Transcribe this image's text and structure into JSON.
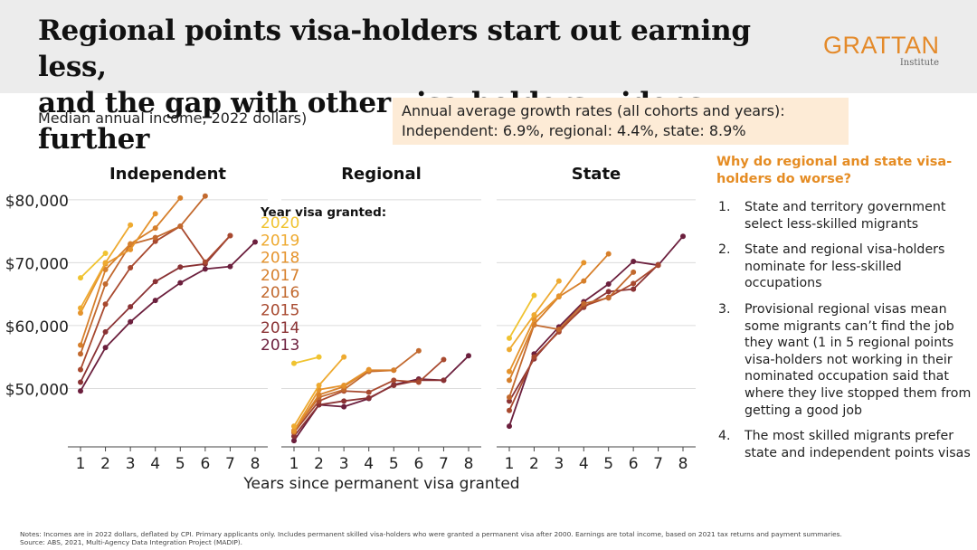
{
  "title_line1": "Regional points visa-holders start out earning less,",
  "title_line2": "and the gap with other visa-holders widens further",
  "logo": {
    "name": "GRATTAN",
    "sub": "Institute"
  },
  "subtitle": "Median annual income, 2022 dollars)",
  "growth_box": {
    "line1": "Annual average growth rates (all cohorts and years):",
    "line2": "Independent: 6.9%, regional: 4.4%, state: 8.9%"
  },
  "sidebar": {
    "title": "Why do regional and state visa-holders do worse?",
    "items": [
      {
        "num": "1.",
        "text": "State and territory government select less-skilled migrants"
      },
      {
        "num": "2.",
        "text": "State and regional visa-holders nominate for less-skilled occupations"
      },
      {
        "num": "3.",
        "text": "Provisional regional visas mean some migrants can’t find the job they want (1 in 5 regional points visa-holders not working in their nominated occupation said that where they live stopped them from getting a good job"
      },
      {
        "num": "4.",
        "text": "The most skilled migrants prefer state and independent points visas"
      }
    ]
  },
  "notes": {
    "line1": "Notes: Incomes are in 2022 dollars, deflated by CPI. Primary applicants only. Includes permanent skilled visa-holders who were granted a permanent visa after 2000. Earnings are total income, based on 2021 tax returns and payment summaries.",
    "line2": "Source: ABS, 2021, Multi-Agency Data Integration Project (MADIP)."
  },
  "colors": {
    "2020": "#f0c330",
    "2019": "#eeaa30",
    "2018": "#e5932c",
    "2017": "#d67f2b",
    "2016": "#c2692e",
    "2015": "#a8492f",
    "2014": "#8a3234",
    "2013": "#6b1f3d",
    "accent": "#e58c23",
    "header_bg": "#ececec",
    "box_bg": "#fdebd6"
  },
  "chart_data": {
    "type": "line",
    "xlabel": "Years since permanent visa granted",
    "ylabel": "",
    "y_ticks": [
      "$50,000",
      "$60,000",
      "$70,000",
      "$80,000"
    ],
    "y_tick_values": [
      50000,
      60000,
      70000,
      80000
    ],
    "ylim": [
      41000,
      82000
    ],
    "x_ticks": [
      1,
      2,
      3,
      4,
      5,
      6,
      7,
      8
    ],
    "legend_title": "Year visa granted:",
    "legend": [
      "2020",
      "2019",
      "2018",
      "2017",
      "2016",
      "2015",
      "2014",
      "2013"
    ],
    "panels": [
      {
        "title": "Independent",
        "series": [
          {
            "name": "2020",
            "x": [
              1,
              2
            ],
            "values": [
              67600,
              71500
            ]
          },
          {
            "name": "2019",
            "x": [
              1,
              2,
              3
            ],
            "values": [
              62800,
              70000,
              76000
            ]
          },
          {
            "name": "2018",
            "x": [
              1,
              2,
              3,
              4
            ],
            "values": [
              62000,
              69800,
              72100,
              77800
            ]
          },
          {
            "name": "2017",
            "x": [
              1,
              2,
              3,
              4,
              5
            ],
            "values": [
              56900,
              68900,
              73000,
              75500,
              80300
            ]
          },
          {
            "name": "2016",
            "x": [
              1,
              2,
              3,
              4,
              5,
              6
            ],
            "values": [
              55500,
              66600,
              72900,
              74000,
              75800,
              80600
            ]
          },
          {
            "name": "2015",
            "x": [
              1,
              2,
              3,
              4,
              5,
              6,
              7
            ],
            "values": [
              53000,
              63400,
              69200,
              73400,
              75800,
              70100,
              74300
            ]
          },
          {
            "name": "2014",
            "x": [
              1,
              2,
              3,
              4,
              5,
              6,
              7
            ],
            "values": [
              51000,
              59000,
              63000,
              67000,
              69300,
              69800,
              74300
            ]
          },
          {
            "name": "2013",
            "x": [
              1,
              2,
              3,
              4,
              5,
              6,
              7,
              8
            ],
            "values": [
              49600,
              56500,
              60600,
              64000,
              66800,
              69000,
              69400,
              73300
            ]
          }
        ]
      },
      {
        "title": "Regional",
        "series": [
          {
            "name": "2020",
            "x": [
              1,
              2
            ],
            "values": [
              54000,
              55000
            ]
          },
          {
            "name": "2019",
            "x": [
              1,
              2,
              3
            ],
            "values": [
              44000,
              50500,
              55000
            ]
          },
          {
            "name": "2018",
            "x": [
              1,
              2,
              3,
              4
            ],
            "values": [
              43300,
              49800,
              50500,
              53000
            ]
          },
          {
            "name": "2017",
            "x": [
              1,
              2,
              3,
              4,
              5
            ],
            "values": [
              43100,
              49000,
              50300,
              52900,
              52900
            ]
          },
          {
            "name": "2016",
            "x": [
              1,
              2,
              3,
              4,
              5,
              6
            ],
            "values": [
              43300,
              48600,
              49800,
              52700,
              52900,
              56000
            ]
          },
          {
            "name": "2015",
            "x": [
              1,
              2,
              3,
              4,
              5,
              6,
              7
            ],
            "values": [
              43000,
              48000,
              49600,
              49400,
              51300,
              51000,
              54600
            ]
          },
          {
            "name": "2014",
            "x": [
              1,
              2,
              3,
              4,
              5,
              6,
              7
            ],
            "values": [
              42400,
              47400,
              48000,
              48500,
              50500,
              51300,
              51300
            ]
          },
          {
            "name": "2013",
            "x": [
              1,
              2,
              3,
              4,
              5,
              6,
              7,
              8
            ],
            "values": [
              41700,
              47400,
              47100,
              48400,
              50600,
              51500,
              51300,
              55200
            ]
          }
        ]
      },
      {
        "title": "State",
        "series": [
          {
            "name": "2020",
            "x": [
              1,
              2
            ],
            "values": [
              58000,
              64800
            ]
          },
          {
            "name": "2019",
            "x": [
              1,
              2,
              3
            ],
            "values": [
              56200,
              61700,
              67100
            ]
          },
          {
            "name": "2018",
            "x": [
              1,
              2,
              3,
              4
            ],
            "values": [
              52700,
              61000,
              64700,
              70000
            ]
          },
          {
            "name": "2017",
            "x": [
              1,
              2,
              3,
              4,
              5
            ],
            "values": [
              51300,
              60200,
              64600,
              67100,
              71400
            ]
          },
          {
            "name": "2016",
            "x": [
              1,
              2,
              3,
              4,
              5,
              6
            ],
            "values": [
              48600,
              60100,
              59400,
              63500,
              64400,
              68500
            ]
          },
          {
            "name": "2015",
            "x": [
              1,
              2,
              3,
              4,
              5,
              6,
              7
            ],
            "values": [
              46500,
              55000,
              59000,
              63100,
              64500,
              66700,
              69600
            ]
          },
          {
            "name": "2014",
            "x": [
              1,
              2,
              3,
              4,
              5,
              6,
              7
            ],
            "values": [
              48000,
              54700,
              59200,
              62900,
              65400,
              65800,
              69700
            ]
          },
          {
            "name": "2013",
            "x": [
              1,
              2,
              3,
              4,
              5,
              6,
              7,
              8
            ],
            "values": [
              44000,
              55500,
              59800,
              63800,
              66600,
              70200,
              69600,
              74200
            ]
          }
        ]
      }
    ]
  }
}
